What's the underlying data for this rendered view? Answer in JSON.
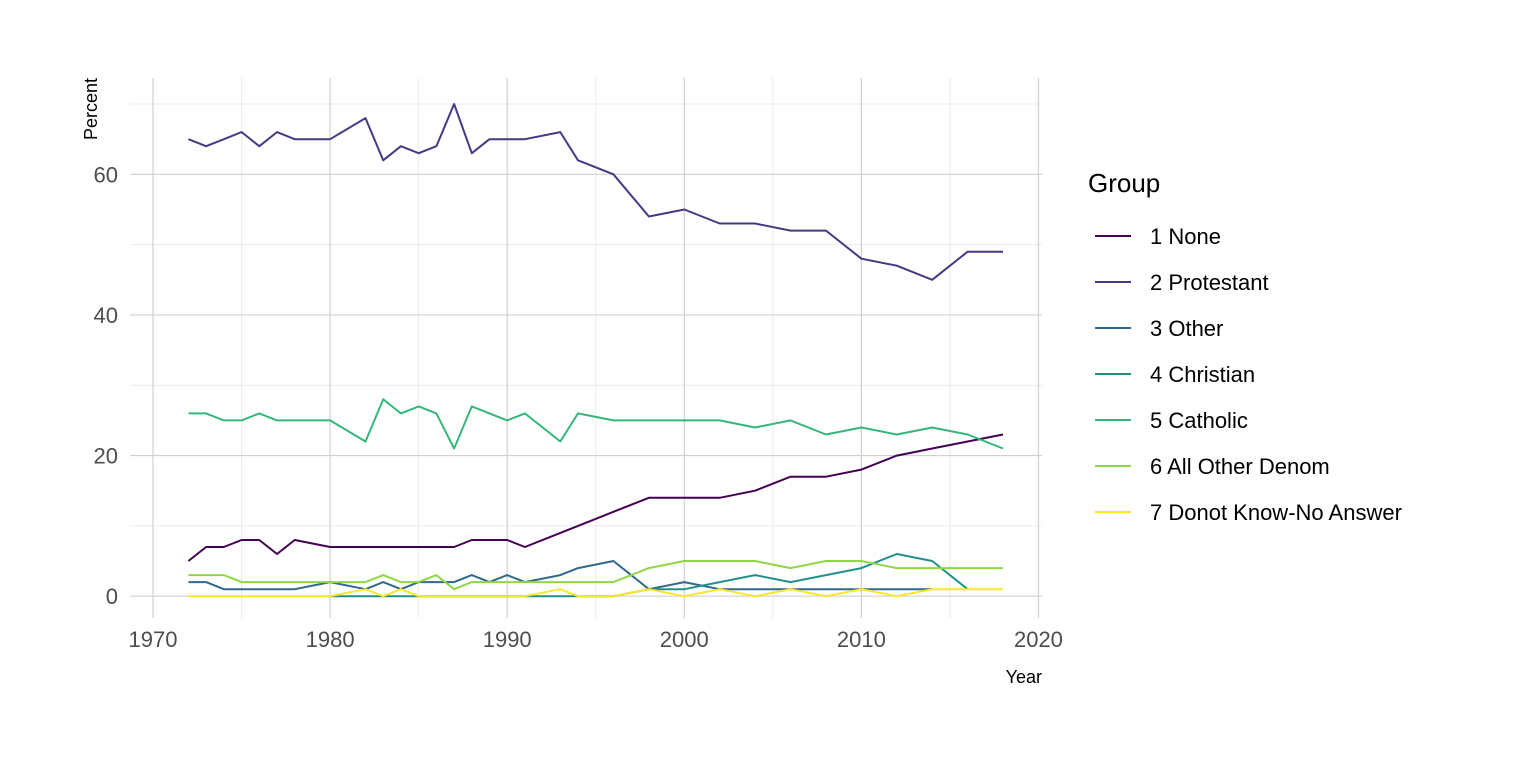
{
  "chart_data": {
    "type": "line",
    "title": "",
    "xlabel": "Year",
    "ylabel": "Percent",
    "xlim": [
      1968.7,
      2020.2
    ],
    "ylim": [
      -3.1,
      73.7
    ],
    "x_ticks": [
      1970,
      1980,
      1990,
      2000,
      2010,
      2020
    ],
    "x_tick_labels": [
      "1970",
      "1980",
      "1990",
      "2000",
      "2010",
      "2020"
    ],
    "y_ticks": [
      0,
      20,
      40,
      60
    ],
    "y_tick_labels": [
      "0",
      "20",
      "40",
      "60"
    ],
    "grid": true,
    "legend_title": "Group",
    "legend_position": "right",
    "x": [
      1972,
      1973,
      1974,
      1975,
      1976,
      1977,
      1978,
      1980,
      1982,
      1983,
      1984,
      1985,
      1986,
      1987,
      1988,
      1989,
      1990,
      1991,
      1993,
      1994,
      1996,
      1998,
      2000,
      2002,
      2004,
      2006,
      2008,
      2010,
      2012,
      2014,
      2016,
      2018
    ],
    "series": [
      {
        "name": "1 None",
        "color": "#440154",
        "values": [
          5,
          7,
          7,
          8,
          8,
          6,
          8,
          7,
          7,
          7,
          7,
          7,
          7,
          7,
          8,
          8,
          8,
          7,
          9,
          10,
          12,
          14,
          14,
          14,
          15,
          17,
          17,
          18,
          20,
          21,
          22,
          23
        ]
      },
      {
        "name": "2 Protestant",
        "color": "#443A83",
        "values": [
          65,
          64,
          65,
          66,
          64,
          66,
          65,
          65,
          68,
          62,
          64,
          63,
          64,
          70,
          63,
          65,
          65,
          65,
          66,
          62,
          60,
          54,
          55,
          53,
          53,
          52,
          52,
          48,
          47,
          45,
          49,
          49
        ]
      },
      {
        "name": "3 Other",
        "color": "#31688E",
        "values": [
          2,
          2,
          1,
          1,
          1,
          1,
          1,
          2,
          1,
          2,
          1,
          2,
          2,
          2,
          3,
          2,
          3,
          2,
          3,
          4,
          5,
          1,
          2,
          1,
          1,
          1,
          1,
          1,
          1,
          1,
          null,
          null
        ]
      },
      {
        "name": "4 Christian",
        "color": "#21908C",
        "values": [
          null,
          null,
          null,
          null,
          null,
          null,
          null,
          0,
          0,
          0,
          0,
          0,
          0,
          0,
          0,
          0,
          0,
          0,
          0,
          0,
          0,
          1,
          1,
          2,
          3,
          2,
          3,
          4,
          6,
          5,
          1,
          null
        ]
      },
      {
        "name": "5 Catholic",
        "color": "#35B779",
        "values": [
          26,
          26,
          25,
          25,
          26,
          25,
          25,
          25,
          22,
          28,
          26,
          27,
          26,
          21,
          27,
          26,
          25,
          26,
          22,
          26,
          25,
          25,
          25,
          25,
          24,
          25,
          23,
          24,
          23,
          24,
          23,
          21
        ]
      },
      {
        "name": "6 All Other Denom",
        "color": "#8FD744",
        "values": [
          3,
          3,
          3,
          2,
          2,
          2,
          2,
          2,
          2,
          3,
          2,
          2,
          3,
          1,
          2,
          2,
          2,
          2,
          2,
          2,
          2,
          4,
          5,
          5,
          5,
          4,
          5,
          5,
          4,
          4,
          4,
          4
        ]
      },
      {
        "name": "7 Donot Know-No Answer",
        "color": "#FDE725",
        "values": [
          0,
          0,
          0,
          0,
          0,
          0,
          0,
          0,
          1,
          0,
          1,
          0,
          0,
          0,
          0,
          0,
          0,
          0,
          1,
          0,
          0,
          1,
          0,
          1,
          0,
          1,
          0,
          1,
          0,
          1,
          1,
          1
        ]
      }
    ]
  }
}
